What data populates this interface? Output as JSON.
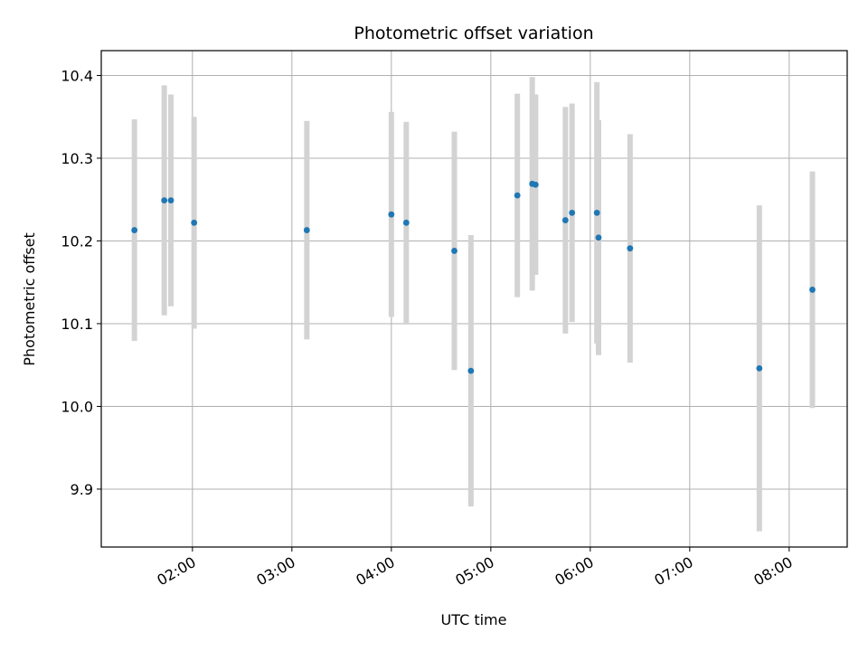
{
  "chart_data": {
    "type": "scatter",
    "title": "Photometric offset variation",
    "xlabel": "UTC time",
    "ylabel": "Photometric offset",
    "grid": true,
    "xlim": [
      "01:05",
      "08:35"
    ],
    "ylim": [
      9.83,
      10.43
    ],
    "x_ticks": [
      "02:00",
      "03:00",
      "04:00",
      "05:00",
      "06:00",
      "07:00",
      "08:00"
    ],
    "y_ticks": [
      "9.9",
      "10.0",
      "10.1",
      "10.2",
      "10.3",
      "10.4"
    ],
    "series": [
      {
        "marker_color": "#1f77b4",
        "errorbar_color": "#d3d3d3",
        "points": [
          {
            "x": "01:25",
            "y": 10.213,
            "yerr": 0.134
          },
          {
            "x": "01:43",
            "y": 10.249,
            "yerr": 0.139
          },
          {
            "x": "01:47",
            "y": 10.249,
            "yerr": 0.128
          },
          {
            "x": "02:01",
            "y": 10.222,
            "yerr": 0.128
          },
          {
            "x": "03:09",
            "y": 10.213,
            "yerr": 0.132
          },
          {
            "x": "04:00",
            "y": 10.232,
            "yerr": 0.124
          },
          {
            "x": "04:09",
            "y": 10.222,
            "yerr": 0.122
          },
          {
            "x": "04:38",
            "y": 10.188,
            "yerr": 0.144
          },
          {
            "x": "04:48",
            "y": 10.043,
            "yerr": 0.164
          },
          {
            "x": "05:16",
            "y": 10.255,
            "yerr": 0.123
          },
          {
            "x": "05:25",
            "y": 10.269,
            "yerr": 0.129
          },
          {
            "x": "05:27",
            "y": 10.268,
            "yerr": 0.109
          },
          {
            "x": "05:45",
            "y": 10.225,
            "yerr": 0.137
          },
          {
            "x": "05:49",
            "y": 10.234,
            "yerr": 0.132
          },
          {
            "x": "06:04",
            "y": 10.234,
            "yerr": 0.158
          },
          {
            "x": "06:05",
            "y": 10.204,
            "yerr": 0.142
          },
          {
            "x": "06:24",
            "y": 10.191,
            "yerr": 0.138
          },
          {
            "x": "07:42",
            "y": 10.046,
            "yerr": 0.197
          },
          {
            "x": "08:14",
            "y": 10.141,
            "yerr": 0.143
          }
        ]
      }
    ]
  }
}
